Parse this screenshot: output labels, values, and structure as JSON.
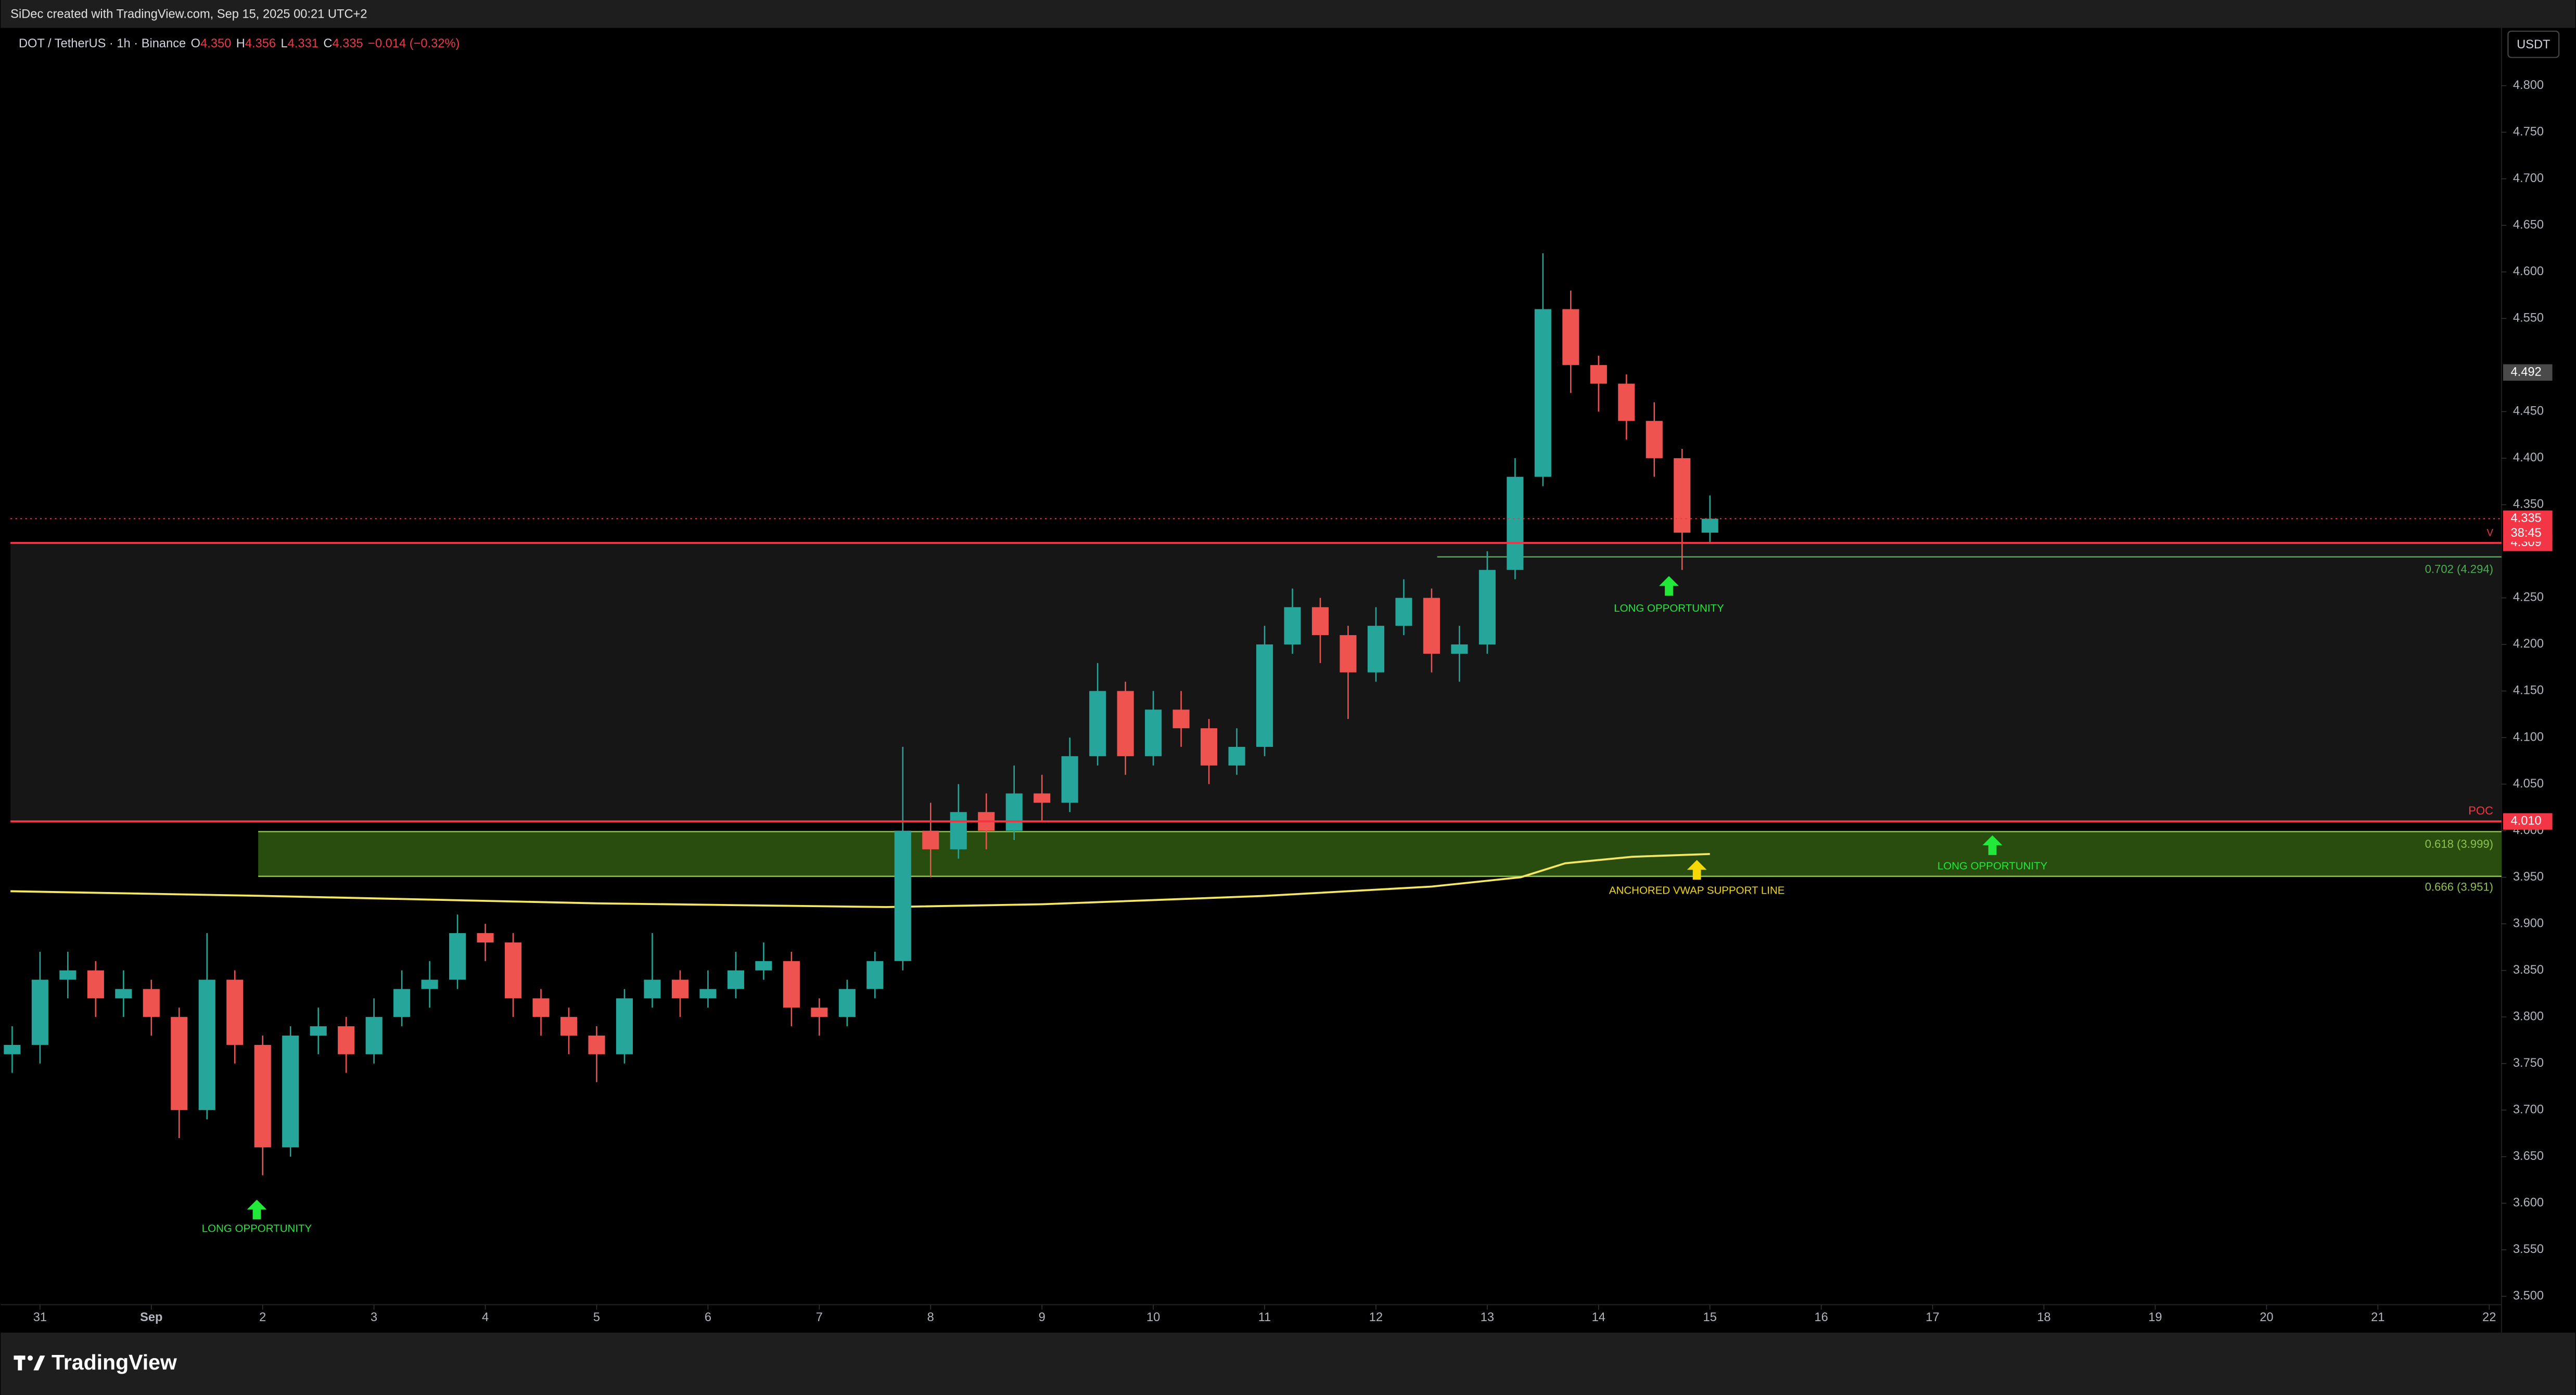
{
  "header": {
    "credit": "SiDec created with TradingView.com, Sep 15, 2025 00:21 UTC+2"
  },
  "legend": [
    {
      "text": "DOT / TetherUS · 1h · Binance",
      "color": "#d1d4dc"
    },
    {
      "text": "O",
      "color": "#d1d4dc"
    },
    {
      "text": "4.350",
      "color": "#f23645"
    },
    {
      "text": "H",
      "color": "#d1d4dc"
    },
    {
      "text": "4.356",
      "color": "#f23645"
    },
    {
      "text": "L",
      "color": "#d1d4dc"
    },
    {
      "text": "4.331",
      "color": "#f23645"
    },
    {
      "text": "C",
      "color": "#d1d4dc"
    },
    {
      "text": "4.335",
      "color": "#f23645"
    },
    {
      "text": "−0.014 (−0.32%)",
      "color": "#f23645"
    }
  ],
  "currency": "USDT",
  "brand": "TradingView",
  "chart_data": {
    "type": "candlestick",
    "x": [
      -0.25,
      0,
      0.25,
      0.5,
      0.75,
      1,
      1.25,
      1.5,
      1.75,
      2,
      2.25,
      2.5,
      2.75,
      3,
      3.25,
      3.5,
      3.75,
      4,
      4.25,
      4.5,
      4.75,
      5,
      5.25,
      5.5,
      5.75,
      6,
      6.25,
      6.5,
      6.75,
      7,
      7.25,
      7.5,
      7.75,
      8,
      8.25,
      8.5,
      8.75,
      9,
      9.25,
      9.5,
      9.75,
      10,
      10.25,
      10.5,
      10.75,
      11,
      11.25,
      11.5,
      11.75,
      12,
      12.25,
      12.5,
      12.75,
      13,
      13.25,
      13.5,
      13.75,
      14,
      14.25,
      14.5,
      14.75,
      15
    ],
    "open": [
      3.76,
      3.77,
      3.84,
      3.85,
      3.82,
      3.83,
      3.8,
      3.7,
      3.84,
      3.77,
      3.66,
      3.78,
      3.79,
      3.76,
      3.8,
      3.83,
      3.84,
      3.89,
      3.88,
      3.82,
      3.8,
      3.78,
      3.76,
      3.82,
      3.84,
      3.82,
      3.83,
      3.85,
      3.86,
      3.81,
      3.8,
      3.83,
      3.86,
      4.0,
      3.98,
      4.02,
      4.0,
      4.04,
      4.03,
      4.08,
      4.15,
      4.08,
      4.13,
      4.11,
      4.07,
      4.09,
      4.2,
      4.24,
      4.21,
      4.17,
      4.22,
      4.25,
      4.19,
      4.2,
      4.28,
      4.38,
      4.56,
      4.5,
      4.48,
      4.44,
      4.4,
      4.32
    ],
    "high": [
      3.79,
      3.87,
      3.87,
      3.86,
      3.85,
      3.84,
      3.81,
      3.89,
      3.85,
      3.78,
      3.79,
      3.81,
      3.8,
      3.82,
      3.85,
      3.86,
      3.91,
      3.9,
      3.89,
      3.83,
      3.81,
      3.79,
      3.83,
      3.89,
      3.85,
      3.85,
      3.87,
      3.88,
      3.87,
      3.82,
      3.84,
      3.87,
      4.09,
      4.03,
      4.05,
      4.04,
      4.07,
      4.06,
      4.1,
      4.18,
      4.16,
      4.15,
      4.15,
      4.12,
      4.11,
      4.22,
      4.26,
      4.25,
      4.22,
      4.24,
      4.27,
      4.26,
      4.22,
      4.3,
      4.4,
      4.62,
      4.58,
      4.51,
      4.49,
      4.46,
      4.41,
      4.36
    ],
    "low": [
      3.74,
      3.75,
      3.82,
      3.8,
      3.8,
      3.78,
      3.67,
      3.69,
      3.75,
      3.63,
      3.65,
      3.76,
      3.74,
      3.75,
      3.79,
      3.81,
      3.83,
      3.86,
      3.8,
      3.78,
      3.76,
      3.73,
      3.75,
      3.81,
      3.8,
      3.81,
      3.82,
      3.84,
      3.79,
      3.78,
      3.79,
      3.82,
      3.85,
      3.95,
      3.97,
      3.98,
      3.99,
      4.01,
      4.02,
      4.07,
      4.06,
      4.07,
      4.09,
      4.05,
      4.06,
      4.08,
      4.19,
      4.18,
      4.12,
      4.16,
      4.21,
      4.17,
      4.16,
      4.19,
      4.27,
      4.37,
      4.47,
      4.45,
      4.42,
      4.38,
      4.28,
      4.31
    ],
    "close": [
      3.77,
      3.84,
      3.85,
      3.82,
      3.83,
      3.8,
      3.7,
      3.84,
      3.77,
      3.66,
      3.78,
      3.79,
      3.76,
      3.8,
      3.83,
      3.84,
      3.89,
      3.88,
      3.82,
      3.8,
      3.78,
      3.76,
      3.82,
      3.84,
      3.82,
      3.83,
      3.85,
      3.86,
      3.81,
      3.8,
      3.83,
      3.86,
      4.0,
      3.98,
      4.02,
      4.0,
      4.04,
      4.03,
      4.08,
      4.15,
      4.08,
      4.13,
      4.11,
      4.07,
      4.09,
      4.2,
      4.24,
      4.21,
      4.17,
      4.22,
      4.25,
      4.19,
      4.2,
      4.28,
      4.38,
      4.56,
      4.5,
      4.48,
      4.44,
      4.4,
      4.32,
      4.335
    ],
    "up_color": "#26a69a",
    "down_color": "#ef5350",
    "vwap": {
      "color": "#f5e663",
      "x": [
        -0.265,
        2,
        5,
        7.6,
        9,
        11,
        12.5,
        13.3,
        13.7,
        14.3,
        15
      ],
      "values": [
        3.935,
        3.93,
        3.922,
        3.918,
        3.921,
        3.93,
        3.94,
        3.95,
        3.965,
        3.972,
        3.975
      ]
    },
    "xlim": [
      -0.265,
      22.11
    ],
    "xticks": [
      {
        "value": 0,
        "label": "31"
      },
      {
        "value": 1,
        "label": "Sep"
      },
      2,
      3,
      4,
      5,
      6,
      7,
      8,
      9,
      10,
      11,
      12,
      13,
      14,
      15,
      16,
      17,
      18,
      19,
      20,
      21,
      22
    ],
    "ylim": [
      3.491,
      4.862
    ],
    "yticks": [
      {
        "value": 3.5,
        "label": "3.500"
      },
      {
        "value": 3.55,
        "label": "3.550"
      },
      {
        "value": 3.6,
        "label": "3.600"
      },
      {
        "value": 3.65,
        "label": "3.650"
      },
      {
        "value": 3.7,
        "label": "3.700"
      },
      {
        "value": 3.75,
        "label": "3.750"
      },
      {
        "value": 3.8,
        "label": "3.800"
      },
      {
        "value": 3.85,
        "label": "3.850"
      },
      {
        "value": 3.9,
        "label": "3.900"
      },
      {
        "value": 3.95,
        "label": "3.950"
      },
      {
        "value": 4,
        "label": "4.000"
      },
      {
        "value": 4.05,
        "label": "4.050"
      },
      {
        "value": 4.1,
        "label": "4.100"
      },
      {
        "value": 4.15,
        "label": "4.150"
      },
      {
        "value": 4.2,
        "label": "4.200"
      },
      {
        "value": 4.25,
        "label": "4.250"
      },
      {
        "value": 4.35,
        "label": "4.350"
      },
      {
        "value": 4.4,
        "label": "4.400"
      },
      {
        "value": 4.45,
        "label": "4.450"
      },
      {
        "value": 4.55,
        "label": "4.550"
      },
      {
        "value": 4.6,
        "label": "4.600"
      },
      {
        "value": 4.65,
        "label": "4.650"
      },
      {
        "value": 4.7,
        "label": "4.700"
      },
      {
        "value": 4.75,
        "label": "4.750"
      },
      {
        "value": 4.8,
        "label": "4.800"
      }
    ],
    "levels": [
      {
        "value": 4.309,
        "label": "4.309",
        "color": "#f23645"
      },
      {
        "value": 4.01,
        "label": "4.010",
        "color": "#f23645",
        "note": "POC"
      }
    ],
    "current_price": {
      "value": 4.335,
      "label": "4.335",
      "countdown": "38:45",
      "flag": "V",
      "color": "#f23645"
    },
    "price_tags": [
      {
        "value": 4.492,
        "label": "4.492",
        "color": "#4a4a4a"
      }
    ],
    "fib_line": {
      "value": 4.294,
      "label": "0.702 (4.294)",
      "color": "#4caf50"
    },
    "fib_zone": {
      "top": 3.999,
      "bottom": 3.951,
      "top_label": "0.618 (3.999)",
      "bottom_label": "0.666 (3.951)",
      "color": "#8bc34a"
    },
    "annotations": [
      {
        "text": "LONG OPPORTUNITY",
        "color": "#22e83a"
      },
      {
        "text": "LONG OPPORTUNITY",
        "color": "#22e83a"
      },
      {
        "text": "LONG OPPORTUNITY",
        "color": "#22e83a"
      },
      {
        "text": "ANCHORED VWAP SUPPORT LINE",
        "color": "#f5d800"
      }
    ]
  }
}
